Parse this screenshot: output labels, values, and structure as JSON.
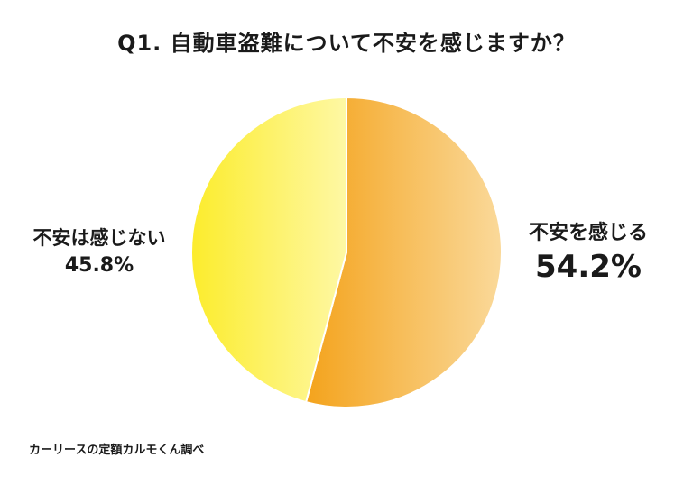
{
  "chart_data": {
    "type": "pie",
    "title": "Q1. 自動車盗難について不安を感じますか？",
    "slices": [
      {
        "label": "不安を感じる",
        "value": 54.2,
        "display": "54.2%",
        "color_start": "#f4a31c",
        "color_end": "#fad99a"
      },
      {
        "label": "不安は感じない",
        "value": 45.8,
        "display": "45.8%",
        "color_start": "#fcec2c",
        "color_end": "#fef8a4"
      }
    ],
    "start_angle": "12 o'clock",
    "direction": "clockwise",
    "legend": "none (direct labels)"
  },
  "source": "カーリースの定額カルモくん調べ"
}
